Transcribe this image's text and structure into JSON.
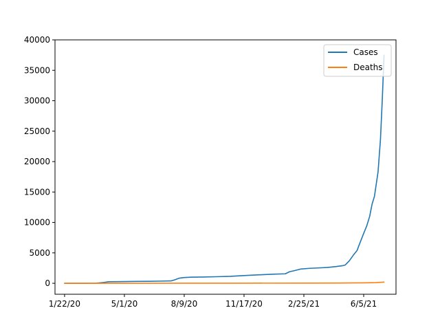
{
  "chart_data": {
    "type": "line",
    "title": "",
    "xlabel": "",
    "ylabel": "",
    "grid": false,
    "legend_position": "top-right",
    "xlim": [
      "2020-01-06",
      "2021-07-29"
    ],
    "ylim": [
      -1800,
      40000
    ],
    "x_ticks": [
      {
        "date": "2020-01-22",
        "label": "1/22/20"
      },
      {
        "date": "2020-05-01",
        "label": "5/1/20"
      },
      {
        "date": "2020-08-09",
        "label": "8/9/20"
      },
      {
        "date": "2020-11-17",
        "label": "11/17/20"
      },
      {
        "date": "2021-02-25",
        "label": "2/25/21"
      },
      {
        "date": "2021-06-05",
        "label": "6/5/21"
      }
    ],
    "y_ticks": [
      0,
      5000,
      10000,
      15000,
      20000,
      25000,
      30000,
      35000,
      40000
    ],
    "series": [
      {
        "name": "Cases",
        "color": "#1f77b4",
        "points": [
          [
            "2020-01-22",
            0
          ],
          [
            "2020-03-01",
            0
          ],
          [
            "2020-03-15",
            20
          ],
          [
            "2020-03-28",
            150
          ],
          [
            "2020-04-05",
            250
          ],
          [
            "2020-04-20",
            270
          ],
          [
            "2020-05-01",
            280
          ],
          [
            "2020-05-20",
            310
          ],
          [
            "2020-06-10",
            330
          ],
          [
            "2020-07-01",
            360
          ],
          [
            "2020-07-18",
            390
          ],
          [
            "2020-07-25",
            600
          ],
          [
            "2020-08-01",
            850
          ],
          [
            "2020-08-09",
            950
          ],
          [
            "2020-08-20",
            1000
          ],
          [
            "2020-09-10",
            1030
          ],
          [
            "2020-10-01",
            1080
          ],
          [
            "2020-10-25",
            1150
          ],
          [
            "2020-11-17",
            1270
          ],
          [
            "2020-12-10",
            1380
          ],
          [
            "2021-01-05",
            1500
          ],
          [
            "2021-01-25",
            1560
          ],
          [
            "2021-02-01",
            1900
          ],
          [
            "2021-02-10",
            2100
          ],
          [
            "2021-02-20",
            2350
          ],
          [
            "2021-03-05",
            2450
          ],
          [
            "2021-03-20",
            2520
          ],
          [
            "2021-04-05",
            2600
          ],
          [
            "2021-04-20",
            2750
          ],
          [
            "2021-05-01",
            2900
          ],
          [
            "2021-05-05",
            3000
          ],
          [
            "2021-05-12",
            3700
          ],
          [
            "2021-05-20",
            4800
          ],
          [
            "2021-05-25",
            5400
          ],
          [
            "2021-05-28",
            6200
          ],
          [
            "2021-06-01",
            7200
          ],
          [
            "2021-06-05",
            8200
          ],
          [
            "2021-06-10",
            9400
          ],
          [
            "2021-06-15",
            11000
          ],
          [
            "2021-06-19",
            13000
          ],
          [
            "2021-06-23",
            14300
          ],
          [
            "2021-06-26",
            16300
          ],
          [
            "2021-06-29",
            18300
          ],
          [
            "2021-07-03",
            23600
          ],
          [
            "2021-07-06",
            30000
          ],
          [
            "2021-07-09",
            37500
          ]
        ]
      },
      {
        "name": "Deaths",
        "color": "#ff7f0e",
        "points": [
          [
            "2020-01-22",
            0
          ],
          [
            "2020-05-01",
            5
          ],
          [
            "2020-08-09",
            12
          ],
          [
            "2020-11-17",
            20
          ],
          [
            "2021-02-25",
            30
          ],
          [
            "2021-05-01",
            45
          ],
          [
            "2021-06-05",
            70
          ],
          [
            "2021-06-25",
            110
          ],
          [
            "2021-07-09",
            200
          ]
        ]
      }
    ]
  }
}
